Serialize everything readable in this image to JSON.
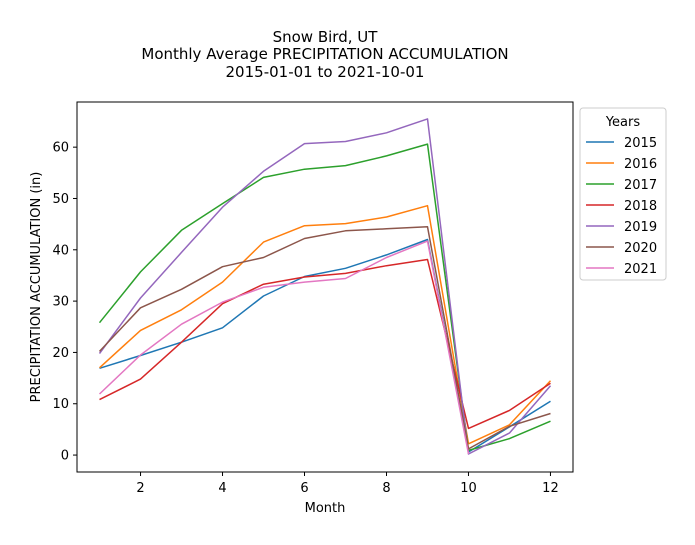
{
  "chart_data": {
    "type": "line",
    "title_lines": [
      "Snow Bird, UT",
      "Monthly Average PRECIPITATION ACCUMULATION",
      "2015-01-01 to 2021-10-01"
    ],
    "xlabel": "Month",
    "ylabel": "PRECIPITATION ACCUMULATION (in)",
    "xlim": [
      0.45,
      12.55
    ],
    "ylim": [
      -3.3,
      68.8
    ],
    "xticks": [
      2,
      4,
      6,
      8,
      10,
      12
    ],
    "yticks": [
      0,
      10,
      20,
      30,
      40,
      50,
      60
    ],
    "grid": false,
    "legend": {
      "title": "Years",
      "position": "outside-right"
    },
    "x": [
      1,
      2,
      3,
      4,
      5,
      6,
      7,
      8,
      9,
      10,
      11,
      12
    ],
    "series": [
      {
        "name": "2015",
        "color": "#1f77b4",
        "values": [
          16.9,
          19.4,
          22.0,
          24.8,
          31.0,
          34.8,
          36.4,
          39.0,
          42.0,
          0.6,
          5.5,
          10.5
        ]
      },
      {
        "name": "2016",
        "color": "#ff7f0e",
        "values": [
          17.0,
          24.3,
          28.3,
          33.7,
          41.5,
          44.7,
          45.1,
          46.4,
          48.6,
          2.2,
          5.9,
          14.5
        ]
      },
      {
        "name": "2017",
        "color": "#2ca02c",
        "values": [
          25.8,
          35.7,
          43.8,
          49.0,
          54.1,
          55.7,
          56.4,
          58.3,
          60.6,
          0.9,
          3.2,
          6.6
        ]
      },
      {
        "name": "2018",
        "color": "#d62728",
        "values": [
          10.8,
          14.8,
          22.0,
          29.5,
          33.3,
          34.7,
          35.4,
          36.9,
          38.1,
          5.2,
          8.7,
          14.0
        ]
      },
      {
        "name": "2019",
        "color": "#9467bd",
        "values": [
          19.8,
          30.6,
          39.5,
          48.3,
          55.3,
          60.7,
          61.1,
          62.8,
          65.5,
          0.2,
          4.3,
          13.5
        ]
      },
      {
        "name": "2020",
        "color": "#8c564b",
        "values": [
          20.2,
          28.7,
          32.3,
          36.7,
          38.5,
          42.2,
          43.7,
          44.1,
          44.5,
          1.2,
          5.6,
          8.1
        ]
      },
      {
        "name": "2021",
        "color": "#e377c2",
        "values": [
          11.9,
          19.5,
          25.5,
          29.8,
          32.7,
          33.7,
          34.4,
          38.5,
          41.7,
          0.2,
          null,
          null
        ]
      }
    ]
  }
}
